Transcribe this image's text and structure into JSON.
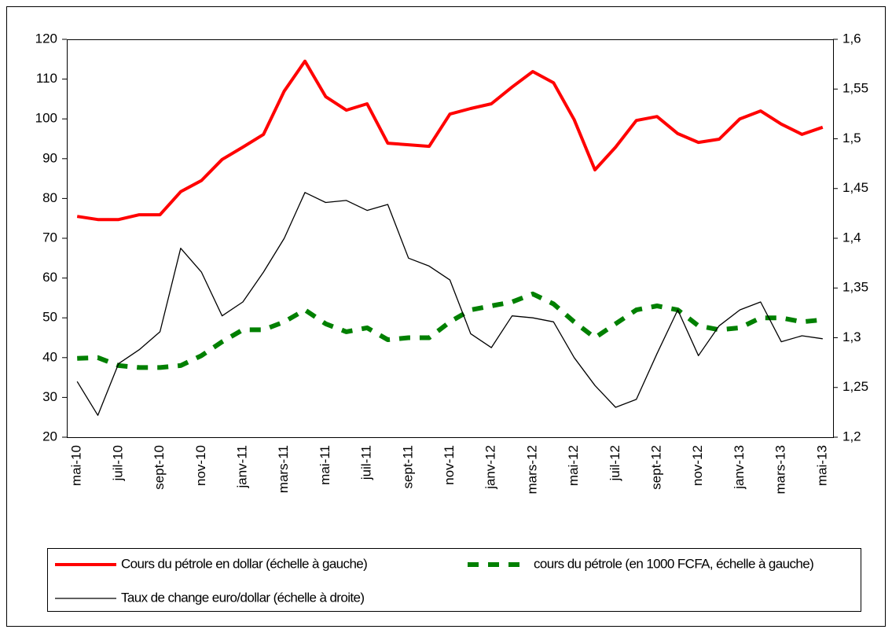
{
  "chart_data": {
    "type": "line",
    "categories": [
      "mai-10",
      null,
      "juil-10",
      null,
      "sept-10",
      null,
      "nov-10",
      null,
      "janv-11",
      null,
      "mars-11",
      null,
      "mai-11",
      null,
      "juil-11",
      null,
      "sept-11",
      null,
      "nov-11",
      null,
      "janv-12",
      null,
      "mars-12",
      null,
      "mai-12",
      null,
      "juil-12",
      null,
      "sept-12",
      null,
      "nov-12",
      null,
      "janv-13",
      null,
      "mars-13",
      null,
      "mai-13"
    ],
    "series": [
      {
        "name": "Cours du pétrole en dollar (échelle à gauche)",
        "color": "#ff0000",
        "style": "solid",
        "values": [
          75.5,
          74.7,
          74.7,
          75.9,
          75.9,
          81.7,
          84.5,
          89.8,
          92.9,
          96.1,
          107,
          114.5,
          105.6,
          102.2,
          103.8,
          93.9,
          93.5,
          93.1,
          101.2,
          102.6,
          103.8,
          108,
          111.9,
          109.1,
          99.8,
          87.2,
          92.9,
          99.6,
          100.6,
          96.3,
          94.1,
          94.9,
          100,
          102,
          98.7,
          96.1,
          97.9
        ]
      },
      {
        "name": "cours du pétrole (en 1000 FCFA, échelle à gauche)",
        "color": "#008000",
        "style": "dashed",
        "values": [
          39.8,
          40,
          38,
          37.5,
          37.5,
          38,
          40.5,
          44,
          47,
          47,
          49,
          52,
          48.5,
          46.5,
          47.5,
          44.5,
          45,
          45,
          49,
          52,
          53,
          54,
          56,
          53.5,
          49,
          45,
          48.5,
          52,
          53,
          52,
          48,
          47,
          47.5,
          50,
          50,
          49,
          49.5
        ]
      },
      {
        "name": "Taux de change euro/dollar (échelle à droite)",
        "color": "#000000",
        "style": "thin",
        "axis": "y2",
        "values": [
          1.256,
          1.222,
          1.274,
          1.288,
          1.306,
          1.39,
          1.366,
          1.322,
          1.336,
          1.366,
          1.4,
          1.446,
          1.436,
          1.438,
          1.428,
          1.434,
          1.38,
          1.372,
          1.358,
          1.304,
          1.29,
          1.322,
          1.32,
          1.316,
          1.28,
          1.252,
          1.23,
          1.238,
          1.284,
          1.328,
          1.282,
          1.312,
          1.328,
          1.336,
          1.296,
          1.302,
          1.299
        ]
      }
    ],
    "ylim": [
      20,
      120
    ],
    "yticks": [
      20,
      30,
      40,
      50,
      60,
      70,
      80,
      90,
      100,
      110,
      120
    ],
    "y2lim": [
      1.2,
      1.6
    ],
    "y2ticks": [
      {
        "value": 1.2,
        "label": "1,2"
      },
      {
        "value": 1.25,
        "label": "1,25"
      },
      {
        "value": 1.3,
        "label": "1,3"
      },
      {
        "value": 1.35,
        "label": "1,35"
      },
      {
        "value": 1.4,
        "label": "1,4"
      },
      {
        "value": 1.45,
        "label": "1,45"
      },
      {
        "value": 1.5,
        "label": "1,5"
      },
      {
        "value": 1.55,
        "label": "1,55"
      },
      {
        "value": 1.6,
        "label": "1,6"
      }
    ],
    "legend": "bottom",
    "grid": false
  }
}
